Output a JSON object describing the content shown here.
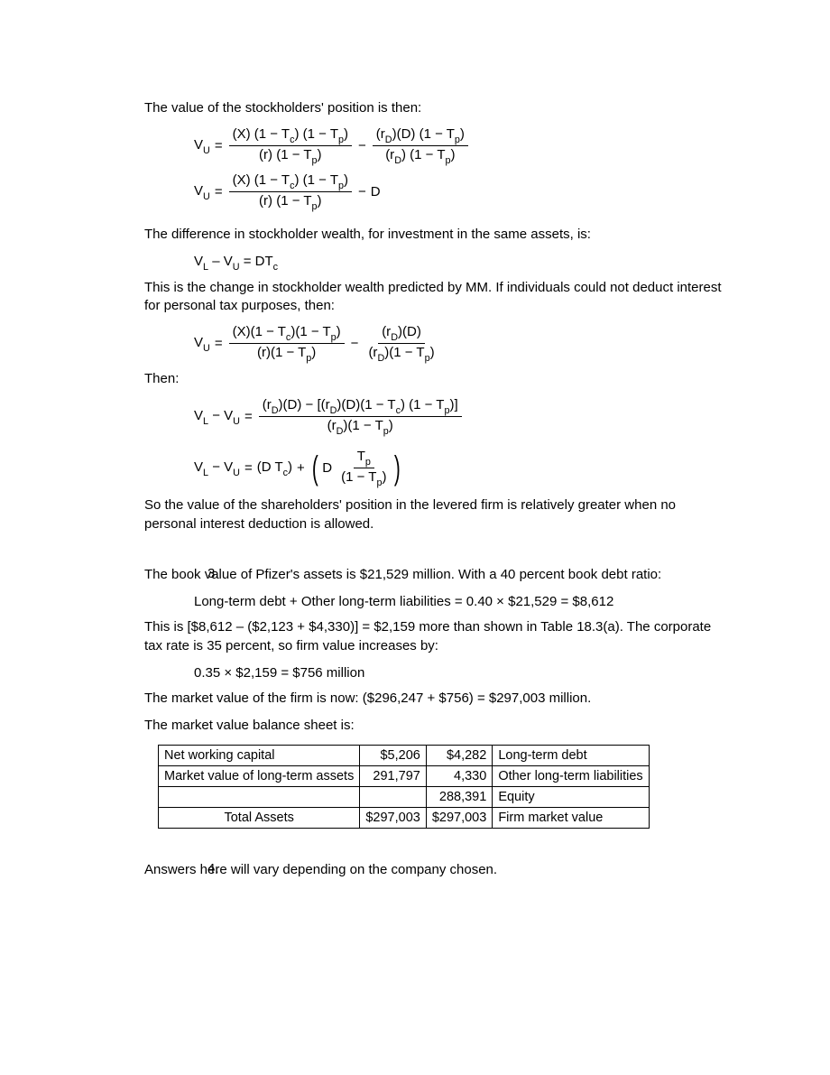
{
  "p1": "The value of the stockholders' position is then:",
  "eq1": {
    "lhs": "V",
    "lhs_sub": "U",
    "t1_num": "(X) (1 − T<span class='sub'>c</span>) (1 − T<span class='sub'>p</span>)",
    "t1_den": "(r) (1 − T<span class='sub'>p</span>)",
    "t2_num": "(r<span class='sub'>D</span>)(D) (1 − T<span class='sub'>p</span>)",
    "t2_den": "(r<span class='sub'>D</span>) (1 − T<span class='sub'>p</span>)"
  },
  "eq2": {
    "lhs": "V",
    "lhs_sub": "U",
    "t1_num": "(X) (1 − T<span class='sub'>c</span>) (1 − T<span class='sub'>p</span>)",
    "t1_den": "(r) (1 − T<span class='sub'>p</span>)",
    "rhs_tail": "D"
  },
  "p2": "The difference in stockholder wealth, for investment in the same assets, is:",
  "eq3_text": "V<span class='sub'>L</span> – V<span class='sub'>U</span> = DT<span class='sub'>c</span>",
  "p3": "This is the change in stockholder wealth predicted by MM.  If individuals could not deduct interest for personal tax purposes, then:",
  "eq4": {
    "lhs": "V",
    "lhs_sub": "U",
    "t1_num": "(X)(1 − T<span class='sub'>c</span>)(1 − T<span class='sub'>p</span>)",
    "t1_den": "(r)(1 − T<span class='sub'>p</span>)",
    "t2_num": "(r<span class='sub'>D</span>)(D)",
    "t2_den": "(r<span class='sub'>D</span>)(1 − T<span class='sub'>p</span>)"
  },
  "p4": "Then:",
  "eq5": {
    "lhs_html": "V<span class='sub'>L</span> − V<span class='sub'>U</span>",
    "num": "(r<span class='sub'>D</span>)(D) − [(r<span class='sub'>D</span>)(D)(1 − T<span class='sub'>c</span>) (1 − T<span class='sub'>p</span>)]",
    "den": "(r<span class='sub'>D</span>)(1 − T<span class='sub'>p</span>)"
  },
  "eq6": {
    "lhs_html": "V<span class='sub'>L</span> − V<span class='sub'>U</span>",
    "term1": "(D T<span class='sub'>c</span>)",
    "inner_left": "D",
    "inner_num": "T<span class='sub'>p</span>",
    "inner_den": "(1 − T<span class='sub'>p</span>)"
  },
  "p5": "So the value of the shareholders' position in the levered firm is relatively greater when no personal interest deduction is allowed.",
  "q3": {
    "num": "3.",
    "p1": "The book value of Pfizer's assets is $21,529 million.  With a 40 percent book debt ratio:",
    "c1": "Long-term debt + Other long-term liabilities = 0.40 × $21,529 = $8,612",
    "p2": "This is [$8,612 – ($2,123 + $4,330)] = $2,159 more than shown in Table 18.3(a).  The corporate tax rate is 35 percent, so firm value increases by:",
    "c2": "0.35 × $2,159 = $756 million",
    "p3": "The market value of the firm is now: ($296,247 + $756) = $297,003 million.",
    "p4": "The market value balance sheet is:"
  },
  "table": {
    "rows": [
      [
        "Net working capital",
        "$5,206",
        "$4,282",
        "Long-term debt"
      ],
      [
        "Market value of long-term assets",
        "291,797",
        "4,330",
        "Other long-term liabilities"
      ],
      [
        "",
        "",
        "288,391",
        "Equity"
      ],
      [
        "Total Assets",
        "$297,003",
        "$297,003",
        "Firm market value"
      ]
    ],
    "col_align": [
      "lbl",
      "num",
      "num",
      "lbl"
    ]
  },
  "q4": {
    "num": "4.",
    "p1": "Answers here will vary depending on the company chosen."
  }
}
